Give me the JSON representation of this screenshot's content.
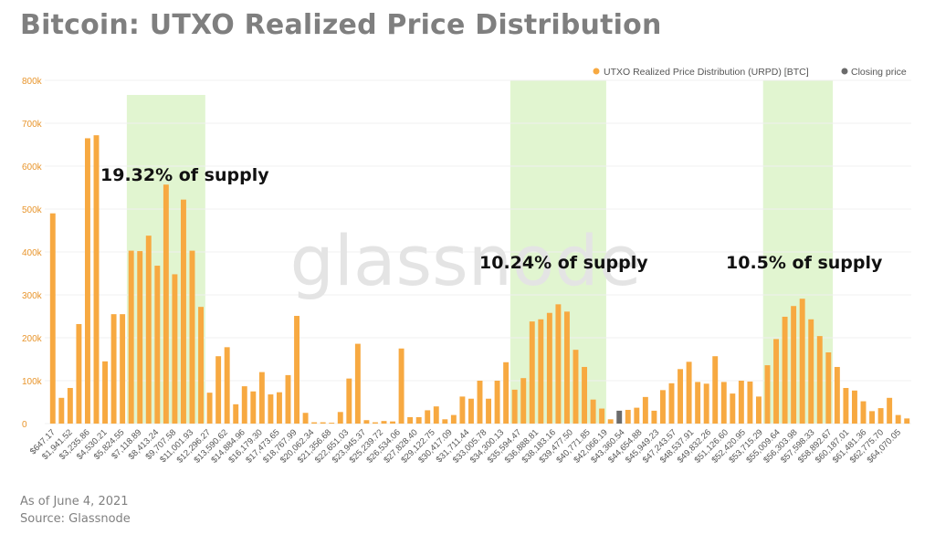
{
  "title": "Bitcoin: UTXO Realized Price Distribution",
  "footer": {
    "as_of": "As of June 4, 2021",
    "source": "Source: Glassnode"
  },
  "watermark": "glassnode",
  "colors": {
    "bar": "#f7a941",
    "closing": "#6b6b6b",
    "highlight": "#d9f2c4",
    "axis_text": "#e8952c",
    "tick_text": "#555555"
  },
  "chart_data": {
    "type": "bar",
    "title": "Bitcoin: UTXO Realized Price Distribution",
    "xlabel": "",
    "ylabel": "",
    "ylim": [
      0,
      800000
    ],
    "y_ticks": [
      0,
      100000,
      200000,
      300000,
      400000,
      500000,
      600000,
      700000,
      800000
    ],
    "y_tick_labels": [
      "0",
      "100k",
      "200k",
      "300k",
      "400k",
      "500k",
      "600k",
      "700k",
      "800k"
    ],
    "grid": true,
    "legend_position": "top-right",
    "series": [
      {
        "name": "UTXO Realized Price Distribution (URPD) [BTC]",
        "color": "#f7a941"
      },
      {
        "name": "Closing price",
        "color": "#6b6b6b"
      }
    ],
    "closing_price_bar_index": 65,
    "x_tick_labels": [
      "$647.17",
      "$1,941.52",
      "$3,235.86",
      "$4,530.21",
      "$5,824.55",
      "$7,118.89",
      "$8,413.24",
      "$9,707.58",
      "$11,001.93",
      "$12,296.27",
      "$13,590.62",
      "$14,884.96",
      "$16,179.30",
      "$17,473.65",
      "$18,767.99",
      "$20,062.34",
      "$21,356.68",
      "$22,651.03",
      "$23,945.37",
      "$25,239.72",
      "$26,534.06",
      "$27,828.40",
      "$29,122.75",
      "$30,417.09",
      "$31,711.44",
      "$33,005.78",
      "$34,300.13",
      "$35,594.47",
      "$36,888.81",
      "$38,183.16",
      "$39,477.50",
      "$40,771.85",
      "$42,066.19",
      "$43,360.54",
      "$44,654.88",
      "$45,949.23",
      "$47,243.57",
      "$48,537.91",
      "$49,832.26",
      "$51,126.60",
      "$52,420.95",
      "$53,715.29",
      "$55,009.64",
      "$56,303.98",
      "$57,598.33",
      "$58,892.67",
      "$60,187.01",
      "$61,481.36",
      "$62,775.70",
      "$64,070.05"
    ],
    "values": [
      490000,
      60000,
      83000,
      232000,
      665000,
      672000,
      145000,
      255000,
      255000,
      403000,
      402000,
      438000,
      368000,
      557000,
      348000,
      522000,
      403000,
      272000,
      72000,
      157000,
      178000,
      45000,
      87000,
      75000,
      120000,
      68000,
      73000,
      113000,
      251000,
      25000,
      3000,
      3000,
      2000,
      27000,
      105000,
      186000,
      8000,
      3000,
      6000,
      5000,
      175000,
      15000,
      15000,
      31000,
      40000,
      10000,
      20000,
      63000,
      58000,
      100000,
      58000,
      100000,
      143000,
      79000,
      106000,
      238000,
      243000,
      258000,
      278000,
      261000,
      172000,
      132000,
      56000,
      35000,
      10000,
      30000,
      32000,
      37000,
      62000,
      30000,
      78000,
      94000,
      127000,
      144000,
      97000,
      93000,
      157000,
      97000,
      70000,
      100000,
      98000,
      63000,
      136000,
      197000,
      249000,
      274000,
      291000,
      243000,
      204000,
      166000,
      132000,
      83000,
      77000,
      52000,
      29000,
      36000,
      60000,
      20000,
      12000
    ],
    "annotations": [
      {
        "text": "19.32% of supply",
        "bar_start": 9,
        "bar_end": 17
      },
      {
        "text": "10.24% of supply",
        "bar_start": 53,
        "bar_end": 63
      },
      {
        "text": "10.5% of supply",
        "bar_start": 82,
        "bar_end": 89
      }
    ]
  }
}
